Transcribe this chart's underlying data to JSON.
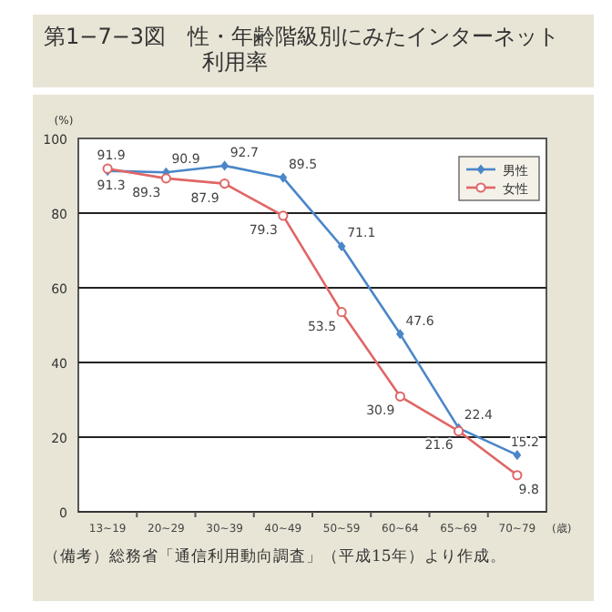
{
  "chart_data": {
    "type": "line",
    "title": "第1−7−3図　性・年齢階級別にみたインターネット利用率",
    "ylabel": "(%)",
    "xlabel": "(歳)",
    "categories": [
      "13~19",
      "20~29",
      "30~39",
      "40~49",
      "50~59",
      "60~64",
      "65~69",
      "70~79"
    ],
    "series": [
      {
        "name": "男性",
        "color": "#4a86c8",
        "marker": "diamond",
        "values": [
          91.3,
          90.9,
          92.7,
          89.5,
          71.1,
          47.6,
          22.4,
          15.2
        ]
      },
      {
        "name": "女性",
        "color": "#e06666",
        "marker": "circle",
        "values": [
          91.9,
          89.3,
          87.9,
          79.3,
          53.5,
          30.9,
          21.6,
          9.8
        ]
      }
    ],
    "ylim": [
      0,
      100
    ],
    "yticks": [
      0,
      20,
      40,
      60,
      80,
      100
    ],
    "grid": "y",
    "legend": "top right",
    "data_labels": true,
    "annotations": [
      "（備考）総務省「通信利用動向調査」（平成15年）より作成。"
    ]
  }
}
